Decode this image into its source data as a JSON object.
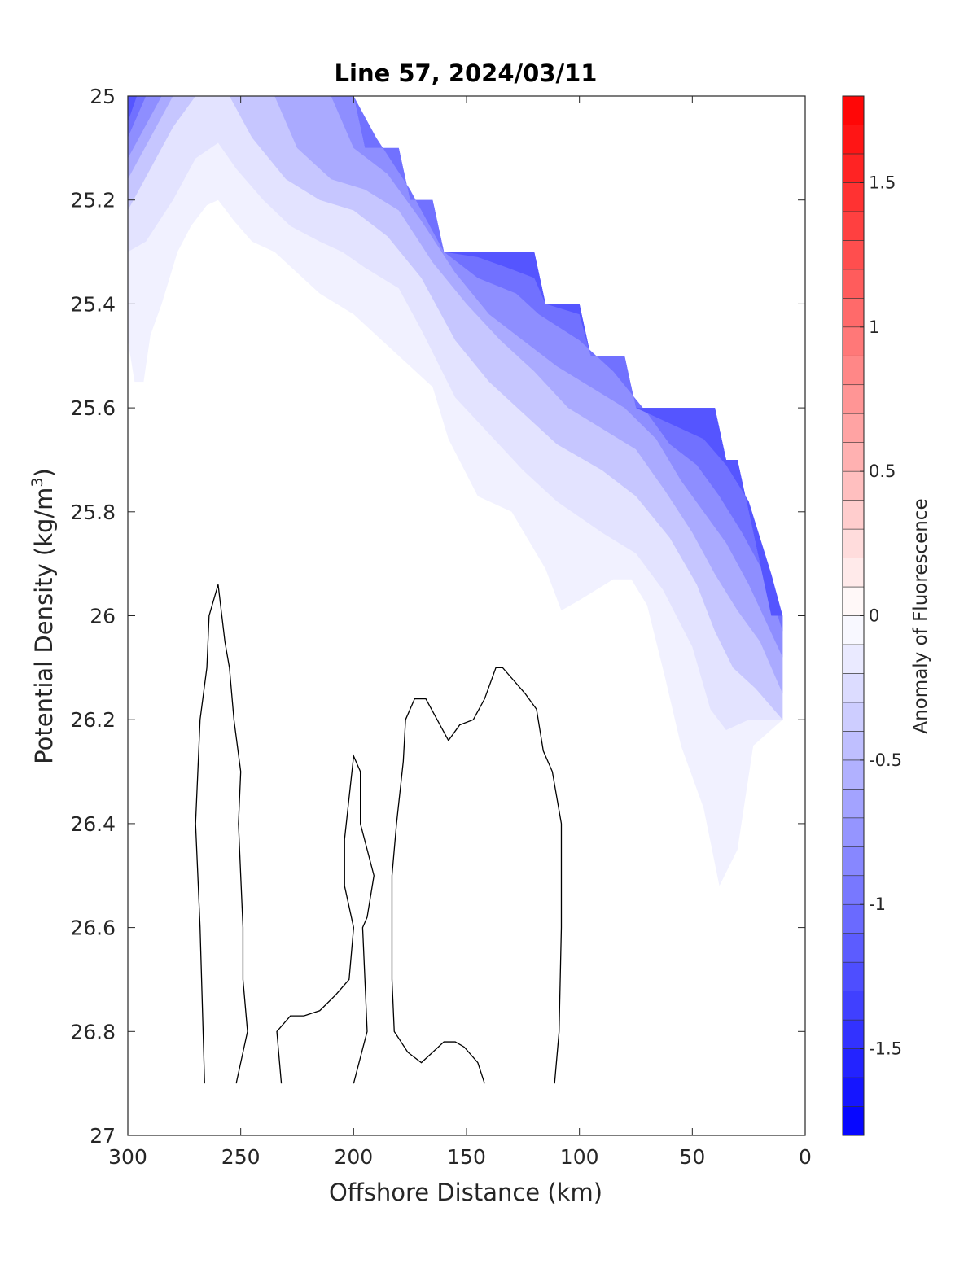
{
  "chart_data": {
    "type": "contour",
    "title": "Line 57, 2024/03/11",
    "xlabel": "Offshore Distance (km)",
    "ylabel": "Potential Density (kg/m",
    "ylabel_superscript": "3",
    "ylabel_close": ")",
    "colorbar_label": "Anomaly of Fluorescence",
    "xlim": [
      0,
      300
    ],
    "x_reversed": true,
    "ylim": [
      25,
      27
    ],
    "y_reversed": true,
    "clim": [
      -1.8,
      1.8
    ],
    "colormap": {
      "low": "#0000ff",
      "mid": "#ffffff",
      "high": "#ff0000"
    },
    "grid": false,
    "x_ticks": [
      300,
      250,
      200,
      150,
      100,
      50,
      0
    ],
    "x_tick_labels": [
      "300",
      "250",
      "200",
      "150",
      "100",
      "50",
      "0"
    ],
    "y_ticks": [
      25,
      25.2,
      25.4,
      25.6,
      25.8,
      26,
      26.2,
      26.4,
      26.6,
      26.8,
      27
    ],
    "y_tick_labels": [
      "25",
      "25.2",
      "25.4",
      "25.6",
      "25.8",
      "26",
      "26.2",
      "26.4",
      "26.6",
      "26.8",
      "27"
    ],
    "colorbar_ticks": [
      -1.5,
      -1,
      -0.5,
      0,
      0.5,
      1,
      1.5
    ],
    "colorbar_tick_labels": [
      "-1.5",
      "-1",
      "-0.5",
      "0",
      "0.5",
      "1",
      "1.5"
    ],
    "data_upper_boundary": [
      [
        300,
        25.0
      ],
      [
        200,
        25.0
      ],
      [
        195,
        25.1
      ],
      [
        180,
        25.1
      ],
      [
        175,
        25.2
      ],
      [
        165,
        25.2
      ],
      [
        160,
        25.3
      ],
      [
        120,
        25.3
      ],
      [
        115,
        25.4
      ],
      [
        100,
        25.4
      ],
      [
        95,
        25.5
      ],
      [
        80,
        25.5
      ],
      [
        75,
        25.6
      ],
      [
        40,
        25.6
      ],
      [
        35,
        25.7
      ],
      [
        30,
        25.7
      ],
      [
        15,
        26.0
      ],
      [
        10,
        26.0
      ],
      [
        10,
        26.2
      ]
    ],
    "filled_levels": [
      {
        "level": -0.1,
        "boundary": [
          [
            300,
            25.47
          ],
          [
            297,
            25.55
          ],
          [
            293,
            25.55
          ],
          [
            290,
            25.46
          ],
          [
            285,
            25.4
          ],
          [
            278,
            25.3
          ],
          [
            272,
            25.25
          ],
          [
            265,
            25.21
          ],
          [
            260,
            25.2
          ],
          [
            253,
            25.24
          ],
          [
            245,
            25.28
          ],
          [
            235,
            25.3
          ],
          [
            225,
            25.34
          ],
          [
            215,
            25.38
          ],
          [
            200,
            25.42
          ],
          [
            180,
            25.5
          ],
          [
            165,
            25.56
          ],
          [
            158,
            25.66
          ],
          [
            145,
            25.77
          ],
          [
            130,
            25.8
          ],
          [
            115,
            25.91
          ],
          [
            108,
            25.99
          ],
          [
            100,
            25.97
          ],
          [
            85,
            25.93
          ],
          [
            77,
            25.93
          ],
          [
            70,
            25.98
          ],
          [
            62,
            26.12
          ],
          [
            55,
            26.25
          ],
          [
            45,
            26.37
          ],
          [
            38,
            26.52
          ],
          [
            30,
            26.45
          ],
          [
            23,
            26.25
          ],
          [
            10,
            26.2
          ]
        ]
      },
      {
        "level": -0.2,
        "boundary": [
          [
            300,
            25.3
          ],
          [
            292,
            25.28
          ],
          [
            280,
            25.2
          ],
          [
            270,
            25.12
          ],
          [
            260,
            25.09
          ],
          [
            252,
            25.14
          ],
          [
            240,
            25.2
          ],
          [
            228,
            25.25
          ],
          [
            215,
            25.28
          ],
          [
            205,
            25.3
          ],
          [
            195,
            25.33
          ],
          [
            180,
            25.37
          ],
          [
            170,
            25.45
          ],
          [
            155,
            25.58
          ],
          [
            140,
            25.65
          ],
          [
            125,
            25.72
          ],
          [
            110,
            25.78
          ],
          [
            90,
            25.84
          ],
          [
            75,
            25.88
          ],
          [
            63,
            25.95
          ],
          [
            50,
            26.06
          ],
          [
            42,
            26.18
          ],
          [
            35,
            26.22
          ],
          [
            25,
            26.2
          ],
          [
            10,
            26.2
          ]
        ]
      },
      {
        "level": -0.4,
        "boundary": [
          [
            300,
            25.22
          ],
          [
            290,
            25.14
          ],
          [
            280,
            25.06
          ],
          [
            270,
            25.0
          ],
          [
            255,
            25.0
          ],
          [
            245,
            25.08
          ],
          [
            230,
            25.16
          ],
          [
            215,
            25.2
          ],
          [
            200,
            25.22
          ],
          [
            185,
            25.27
          ],
          [
            170,
            25.35
          ],
          [
            155,
            25.47
          ],
          [
            140,
            25.55
          ],
          [
            125,
            25.61
          ],
          [
            110,
            25.67
          ],
          [
            90,
            25.72
          ],
          [
            75,
            25.77
          ],
          [
            60,
            25.85
          ],
          [
            48,
            25.94
          ],
          [
            40,
            26.03
          ],
          [
            32,
            26.1
          ],
          [
            22,
            26.14
          ],
          [
            10,
            26.2
          ]
        ]
      },
      {
        "level": -0.6,
        "boundary": [
          [
            300,
            25.16
          ],
          [
            290,
            25.08
          ],
          [
            280,
            25.0
          ],
          [
            235,
            25.0
          ],
          [
            225,
            25.1
          ],
          [
            210,
            25.16
          ],
          [
            195,
            25.18
          ],
          [
            180,
            25.22
          ],
          [
            165,
            25.32
          ],
          [
            150,
            25.4
          ],
          [
            135,
            25.47
          ],
          [
            120,
            25.53
          ],
          [
            105,
            25.6
          ],
          [
            90,
            25.64
          ],
          [
            75,
            25.68
          ],
          [
            62,
            25.76
          ],
          [
            50,
            25.84
          ],
          [
            40,
            25.92
          ],
          [
            30,
            25.99
          ],
          [
            20,
            26.05
          ],
          [
            10,
            26.15
          ]
        ]
      },
      {
        "level": -0.8,
        "boundary": [
          [
            300,
            25.12
          ],
          [
            290,
            25.04
          ],
          [
            285,
            25.0
          ],
          [
            210,
            25.0
          ],
          [
            200,
            25.1
          ],
          [
            185,
            25.15
          ],
          [
            170,
            25.24
          ],
          [
            155,
            25.34
          ],
          [
            140,
            25.42
          ],
          [
            125,
            25.47
          ],
          [
            110,
            25.52
          ],
          [
            95,
            25.56
          ],
          [
            80,
            25.6
          ],
          [
            66,
            25.66
          ],
          [
            55,
            25.74
          ],
          [
            45,
            25.8
          ],
          [
            35,
            25.86
          ],
          [
            25,
            25.94
          ],
          [
            10,
            26.08
          ]
        ]
      },
      {
        "level": -1.0,
        "boundary": [
          [
            300,
            25.08
          ],
          [
            292,
            25.0
          ],
          [
            200,
            25.0
          ],
          [
            190,
            25.08
          ],
          [
            175,
            25.18
          ],
          [
            160,
            25.3
          ],
          [
            145,
            25.35
          ],
          [
            128,
            25.38
          ],
          [
            118,
            25.42
          ],
          [
            100,
            25.47
          ],
          [
            85,
            25.53
          ],
          [
            70,
            25.61
          ],
          [
            60,
            25.67
          ],
          [
            48,
            25.71
          ],
          [
            38,
            25.77
          ],
          [
            28,
            25.84
          ],
          [
            18,
            25.92
          ],
          [
            10,
            26.03
          ]
        ]
      },
      {
        "level": -1.2,
        "boundary": [
          [
            300,
            25.05
          ],
          [
            296,
            25.0
          ],
          [
            245,
            25.0
          ],
          [
            200,
            25.0
          ],
          [
            195,
            25.1
          ],
          [
            180,
            25.1
          ],
          [
            175,
            25.2
          ],
          [
            165,
            25.2
          ],
          [
            160,
            25.3
          ],
          [
            145,
            25.31
          ],
          [
            132,
            25.33
          ],
          [
            120,
            25.35
          ],
          [
            115,
            25.4
          ],
          [
            100,
            25.42
          ],
          [
            95,
            25.5
          ],
          [
            80,
            25.5
          ],
          [
            75,
            25.6
          ],
          [
            60,
            25.63
          ],
          [
            45,
            25.66
          ],
          [
            35,
            25.71
          ],
          [
            25,
            25.78
          ],
          [
            15,
            25.92
          ],
          [
            10,
            26.0
          ]
        ]
      }
    ],
    "zero_contours": [
      [
        [
          266,
          26.9
        ],
        [
          268,
          26.6
        ],
        [
          270,
          26.4
        ],
        [
          268,
          26.2
        ],
        [
          265,
          26.1
        ],
        [
          264,
          26.0
        ],
        [
          260,
          25.94
        ],
        [
          257,
          26.05
        ],
        [
          255,
          26.1
        ],
        [
          253,
          26.2
        ],
        [
          250,
          26.3
        ],
        [
          251,
          26.4
        ],
        [
          249,
          26.6
        ],
        [
          249,
          26.7
        ],
        [
          247,
          26.8
        ],
        [
          252,
          26.9
        ]
      ],
      [
        [
          232,
          26.9
        ],
        [
          234,
          26.8
        ],
        [
          228,
          26.77
        ],
        [
          222,
          26.77
        ],
        [
          215,
          26.76
        ],
        [
          208,
          26.73
        ],
        [
          202,
          26.7
        ],
        [
          200,
          26.6
        ],
        [
          204,
          26.52
        ],
        [
          204,
          26.43
        ],
        [
          202,
          26.35
        ],
        [
          200,
          26.27
        ],
        [
          197,
          26.3
        ],
        [
          197,
          26.4
        ],
        [
          191,
          26.5
        ],
        [
          194,
          26.58
        ],
        [
          196,
          26.6
        ],
        [
          195,
          26.7
        ],
        [
          194,
          26.8
        ],
        [
          200,
          26.9
        ]
      ],
      [
        [
          142,
          26.9
        ],
        [
          145,
          26.86
        ],
        [
          151,
          26.83
        ],
        [
          155,
          26.82
        ],
        [
          160,
          26.82
        ],
        [
          170,
          26.86
        ],
        [
          176,
          26.84
        ],
        [
          182,
          26.8
        ],
        [
          183,
          26.7
        ],
        [
          183,
          26.5
        ],
        [
          181,
          26.4
        ],
        [
          178,
          26.28
        ],
        [
          177,
          26.2
        ],
        [
          173,
          26.16
        ],
        [
          168,
          26.16
        ],
        [
          163,
          26.2
        ],
        [
          158,
          26.24
        ],
        [
          153,
          26.21
        ],
        [
          147,
          26.2
        ],
        [
          142,
          26.16
        ],
        [
          137,
          26.1
        ],
        [
          134,
          26.1
        ],
        [
          130,
          26.12
        ],
        [
          124,
          26.15
        ],
        [
          119,
          26.18
        ],
        [
          116,
          26.26
        ],
        [
          112,
          26.3
        ],
        [
          108,
          26.4
        ],
        [
          108,
          26.6
        ],
        [
          109,
          26.8
        ],
        [
          111,
          26.9
        ]
      ]
    ]
  }
}
